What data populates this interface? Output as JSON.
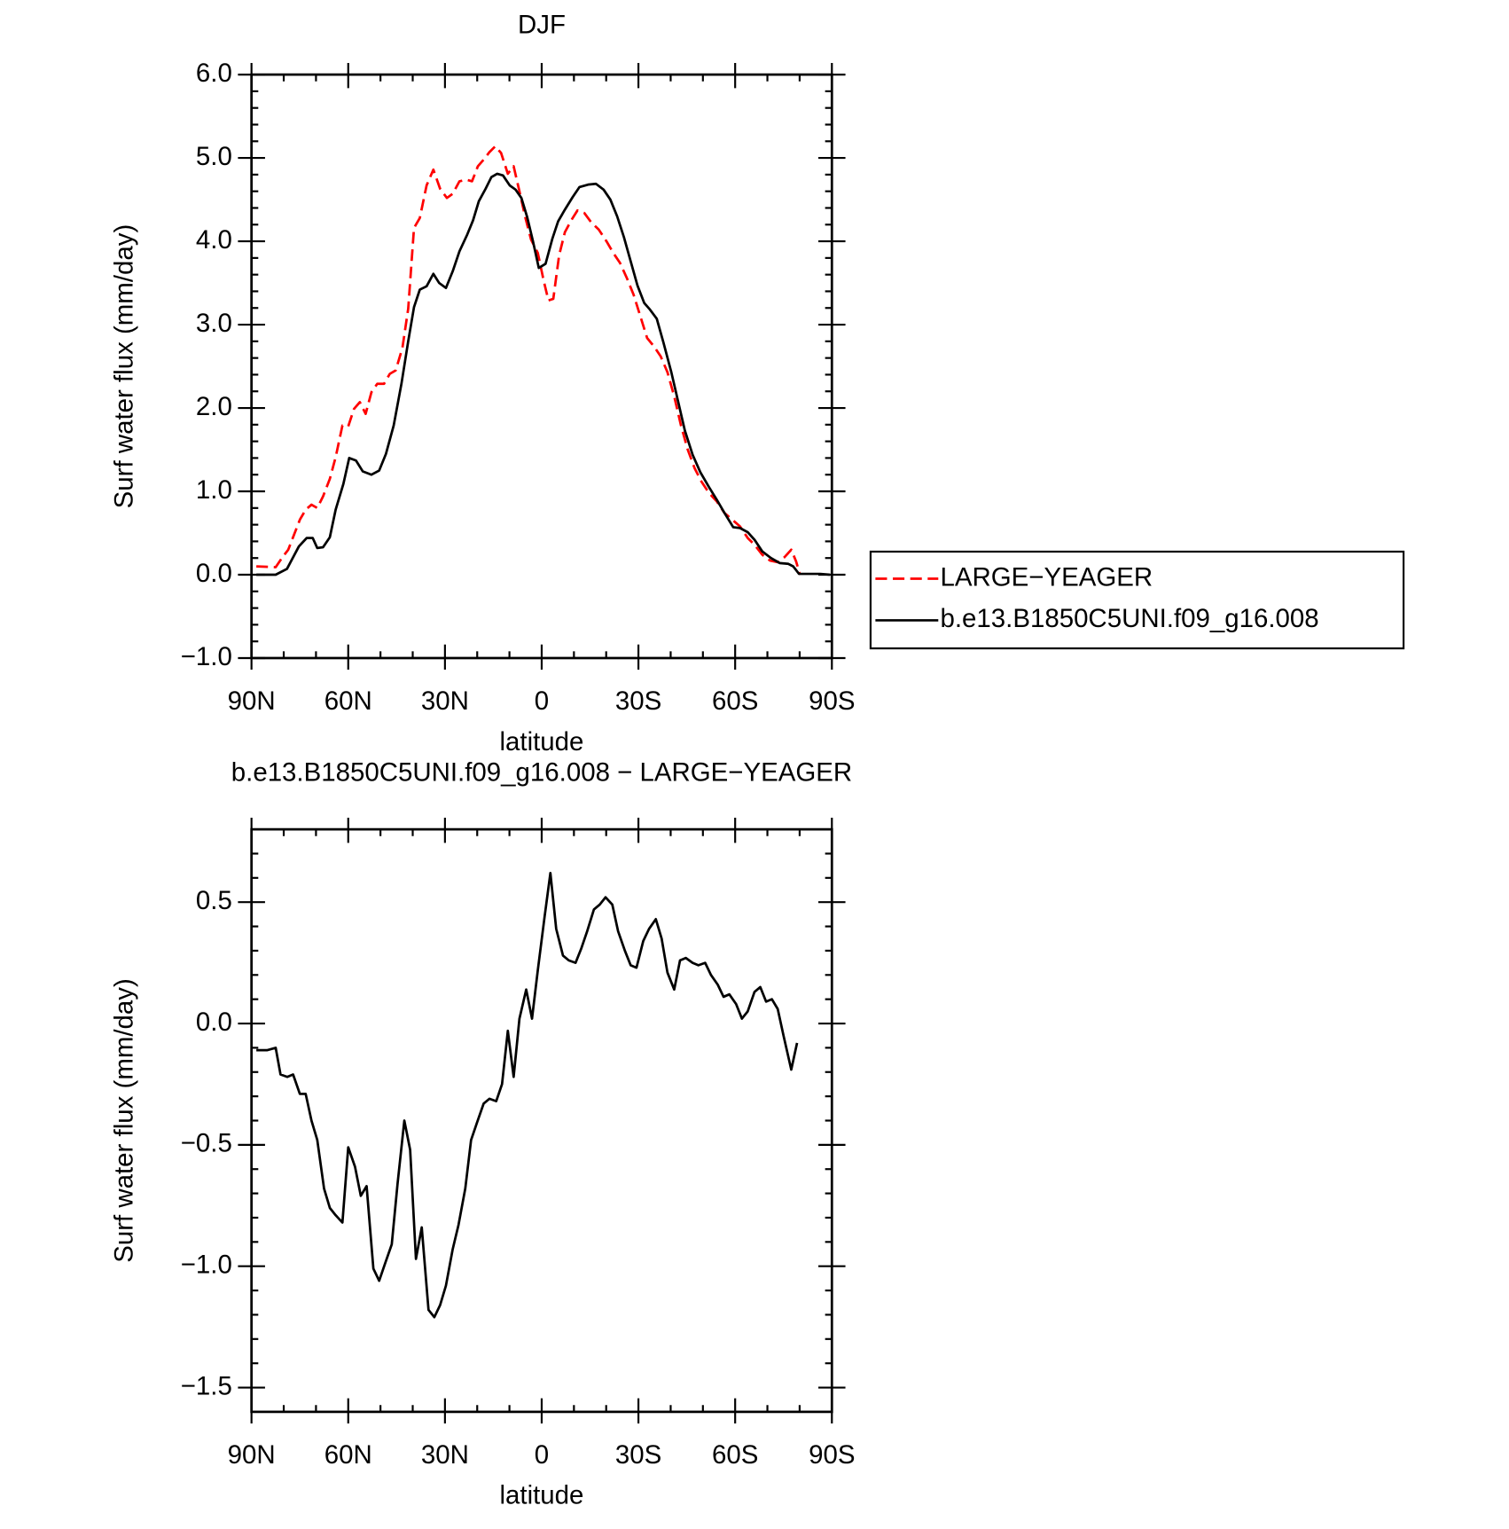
{
  "chart_data": [
    {
      "type": "line",
      "title": "DJF",
      "x_label": "latitude",
      "y_label": "Surf water flux (mm/day)",
      "xlim": [
        90,
        -90
      ],
      "xticks": [
        {
          "value": 90,
          "label": "90N"
        },
        {
          "value": 60,
          "label": "60N"
        },
        {
          "value": 30,
          "label": "30N"
        },
        0,
        {
          "value": -30,
          "label": "30S"
        },
        {
          "value": -60,
          "label": "60S"
        },
        {
          "value": -90,
          "label": "90S"
        }
      ],
      "ylim": [
        -1,
        6
      ],
      "yticks": [
        {
          "value": -1,
          "label": "−1.0"
        },
        {
          "value": 0,
          "label": "0.0"
        },
        {
          "value": 1,
          "label": "1.0"
        },
        {
          "value": 2,
          "label": "2.0"
        },
        {
          "value": 3,
          "label": "3.0"
        },
        {
          "value": 4,
          "label": "4.0"
        },
        {
          "value": 5,
          "label": "5.0"
        },
        {
          "value": 6,
          "label": "6.0"
        }
      ],
      "legend": "outside-right",
      "series": [
        {
          "name": "LARGE−YEAGER",
          "color": "#ff0000",
          "style": "dashed",
          "x": [
            88.5,
            82.5,
            80.4,
            78.6,
            76.8,
            75,
            73.2,
            71.4,
            69.6,
            67.8,
            65.7,
            63.9,
            61.8,
            60,
            58.2,
            56.4,
            54.6,
            52.8,
            51,
            48.9,
            47.1,
            45.3,
            43.2,
            41.4,
            39.6,
            37.8,
            35.7,
            33.6,
            31.5,
            29.4,
            27.6,
            25.5,
            23.4,
            21.6,
            19.8,
            18,
            16.2,
            14.4,
            12.6,
            10.5,
            8.7,
            6.9,
            5.1,
            3.3,
            1.2,
            -0.6,
            -2.1,
            -3.6,
            -5.4,
            -7.2,
            -9.3,
            -11.1,
            -13.2,
            -15.3,
            -17.7,
            -20.1,
            -22.2,
            -24.3,
            -26.4,
            -28.5,
            -30.6,
            -32.7,
            -34.8,
            -36.9,
            -39,
            -41.1,
            -43.2,
            -45.3,
            -47.4,
            -49.5,
            -51.9,
            -54.3,
            -56.7,
            -59.1,
            -61.5,
            -63.9,
            -66,
            -68.4,
            -70.8,
            -73.2,
            -75.3,
            -77.4,
            -78.9,
            -80.1
          ],
          "values": [
            0.1,
            0.09,
            0.21,
            0.3,
            0.48,
            0.66,
            0.78,
            0.84,
            0.8,
            0.94,
            1.15,
            1.41,
            1.79,
            1.78,
            1.99,
            2.07,
            1.93,
            2.19,
            2.29,
            2.29,
            2.41,
            2.45,
            2.72,
            3.19,
            4.16,
            4.28,
            4.67,
            4.86,
            4.63,
            4.52,
            4.57,
            4.72,
            4.74,
            4.72,
            4.9,
            4.98,
            5.07,
            5.14,
            5.06,
            4.81,
            4.9,
            4.6,
            4.29,
            4.02,
            3.86,
            3.53,
            3.29,
            3.31,
            3.83,
            4.11,
            4.26,
            4.37,
            4.34,
            4.23,
            4.14,
            4.0,
            3.86,
            3.74,
            3.56,
            3.36,
            3.1,
            2.84,
            2.74,
            2.62,
            2.43,
            2.14,
            1.79,
            1.5,
            1.28,
            1.12,
            0.98,
            0.88,
            0.74,
            0.66,
            0.58,
            0.44,
            0.36,
            0.24,
            0.17,
            0.15,
            0.21,
            0.3,
            0.16,
            0.0
          ]
        },
        {
          "name": "b.e13.B1850C5UNI.f09_g16.008",
          "color": "#000000",
          "style": "solid",
          "x": [
            88.5,
            82.5,
            79,
            75.3,
            72.9,
            71,
            69.6,
            67.8,
            65.7,
            63.9,
            61.5,
            59.7,
            57.6,
            55.5,
            52.8,
            50.4,
            48.3,
            45.9,
            43.5,
            41.4,
            39.6,
            37.8,
            35.7,
            33.6,
            31.8,
            29.7,
            27.6,
            25.5,
            23.1,
            21.3,
            19.5,
            17.4,
            15.6,
            13.8,
            12,
            9.9,
            8.1,
            6.3,
            4.5,
            2.7,
            0.9,
            -1.2,
            -3.3,
            -5.1,
            -7.2,
            -9.6,
            -11.7,
            -14.4,
            -16.8,
            -19.2,
            -21.3,
            -23.4,
            -25.5,
            -27.6,
            -29.7,
            -31.8,
            -33.6,
            -35.7,
            -37.8,
            -40.2,
            -42.3,
            -44.4,
            -46.8,
            -49.2,
            -51.9,
            -54.3,
            -56.7,
            -59.4,
            -61.5,
            -63.9,
            -66,
            -68.4,
            -71.1,
            -73.8,
            -76.5,
            -78,
            -79.8,
            -83.4,
            -86.4,
            -89.4
          ],
          "values": [
            0.0,
            0.0,
            0.07,
            0.34,
            0.44,
            0.44,
            0.32,
            0.33,
            0.45,
            0.78,
            1.09,
            1.4,
            1.37,
            1.24,
            1.2,
            1.25,
            1.45,
            1.79,
            2.29,
            2.8,
            3.21,
            3.42,
            3.46,
            3.61,
            3.5,
            3.44,
            3.64,
            3.88,
            4.08,
            4.25,
            4.48,
            4.63,
            4.77,
            4.81,
            4.79,
            4.67,
            4.62,
            4.52,
            4.29,
            4.0,
            3.68,
            3.73,
            4.03,
            4.24,
            4.38,
            4.53,
            4.65,
            4.68,
            4.69,
            4.62,
            4.5,
            4.3,
            4.05,
            3.76,
            3.47,
            3.26,
            3.18,
            3.07,
            2.78,
            2.43,
            2.08,
            1.73,
            1.44,
            1.23,
            1.05,
            0.9,
            0.74,
            0.57,
            0.56,
            0.51,
            0.42,
            0.28,
            0.2,
            0.14,
            0.13,
            0.1,
            0.01,
            0.01,
            0.01,
            0.0
          ]
        }
      ]
    },
    {
      "type": "line",
      "title": "b.e13.B1850C5UNI.f09_g16.008 − LARGE−YEAGER",
      "x_label": "latitude",
      "y_label": "Surf water flux (mm/day)",
      "xlim": [
        90,
        -90
      ],
      "xticks": [
        {
          "value": 90,
          "label": "90N"
        },
        {
          "value": 60,
          "label": "60N"
        },
        {
          "value": 30,
          "label": "30N"
        },
        0,
        {
          "value": -30,
          "label": "30S"
        },
        {
          "value": -60,
          "label": "60S"
        },
        {
          "value": -90,
          "label": "90S"
        }
      ],
      "ylim": [
        -1.6,
        0.8
      ],
      "yticks": [
        {
          "value": -1.5,
          "label": "−1.5"
        },
        {
          "value": -1,
          "label": "−1.0"
        },
        {
          "value": -0.5,
          "label": "−0.5"
        },
        {
          "value": 0,
          "label": "0.0"
        },
        0.5
      ],
      "series": [
        {
          "color": "#000000",
          "style": "solid",
          "x": [
            88.5,
            85.2,
            82.5,
            81,
            78.9,
            77.1,
            75,
            73.2,
            71.4,
            69.6,
            67.5,
            65.7,
            63.9,
            61.8,
            60,
            57.9,
            56.1,
            54.3,
            52.2,
            50.4,
            48.6,
            46.5,
            44.7,
            42.6,
            40.8,
            39,
            37.2,
            35.1,
            33.3,
            31.5,
            29.7,
            27.6,
            25.8,
            23.7,
            21.9,
            20.1,
            18,
            16.2,
            14.1,
            12.3,
            10.5,
            8.7,
            6.9,
            4.8,
            3,
            1.2,
            -0.9,
            -2.7,
            -4.5,
            -6.6,
            -8.4,
            -10.5,
            -12.3,
            -14.1,
            -16.2,
            -18,
            -19.8,
            -21.9,
            -23.7,
            -25.8,
            -27.6,
            -29.4,
            -31.5,
            -33.3,
            -35.4,
            -37.2,
            -39,
            -41.1,
            -42.9,
            -44.7,
            -46.8,
            -48.6,
            -50.7,
            -52.5,
            -54.6,
            -56.4,
            -58.2,
            -60.3,
            -62.1,
            -63.9,
            -66,
            -67.8,
            -69.6,
            -71.4,
            -73.2,
            -75,
            -77.4,
            -79.2
          ],
          "values": [
            -0.11,
            -0.11,
            -0.1,
            -0.21,
            -0.22,
            -0.21,
            -0.29,
            -0.29,
            -0.4,
            -0.48,
            -0.68,
            -0.76,
            -0.79,
            -0.82,
            -0.51,
            -0.59,
            -0.71,
            -0.67,
            -1.01,
            -1.06,
            -0.99,
            -0.91,
            -0.66,
            -0.4,
            -0.52,
            -0.97,
            -0.84,
            -1.18,
            -1.21,
            -1.16,
            -1.08,
            -0.93,
            -0.83,
            -0.68,
            -0.48,
            -0.41,
            -0.33,
            -0.31,
            -0.32,
            -0.25,
            -0.03,
            -0.22,
            0.02,
            0.14,
            0.02,
            0.22,
            0.44,
            0.62,
            0.39,
            0.28,
            0.26,
            0.25,
            0.31,
            0.38,
            0.47,
            0.49,
            0.52,
            0.49,
            0.38,
            0.3,
            0.24,
            0.23,
            0.34,
            0.39,
            0.43,
            0.35,
            0.21,
            0.14,
            0.26,
            0.27,
            0.25,
            0.24,
            0.25,
            0.2,
            0.16,
            0.11,
            0.12,
            0.08,
            0.02,
            0.05,
            0.13,
            0.15,
            0.09,
            0.1,
            0.06,
            -0.05,
            -0.19,
            -0.08
          ]
        }
      ]
    }
  ]
}
